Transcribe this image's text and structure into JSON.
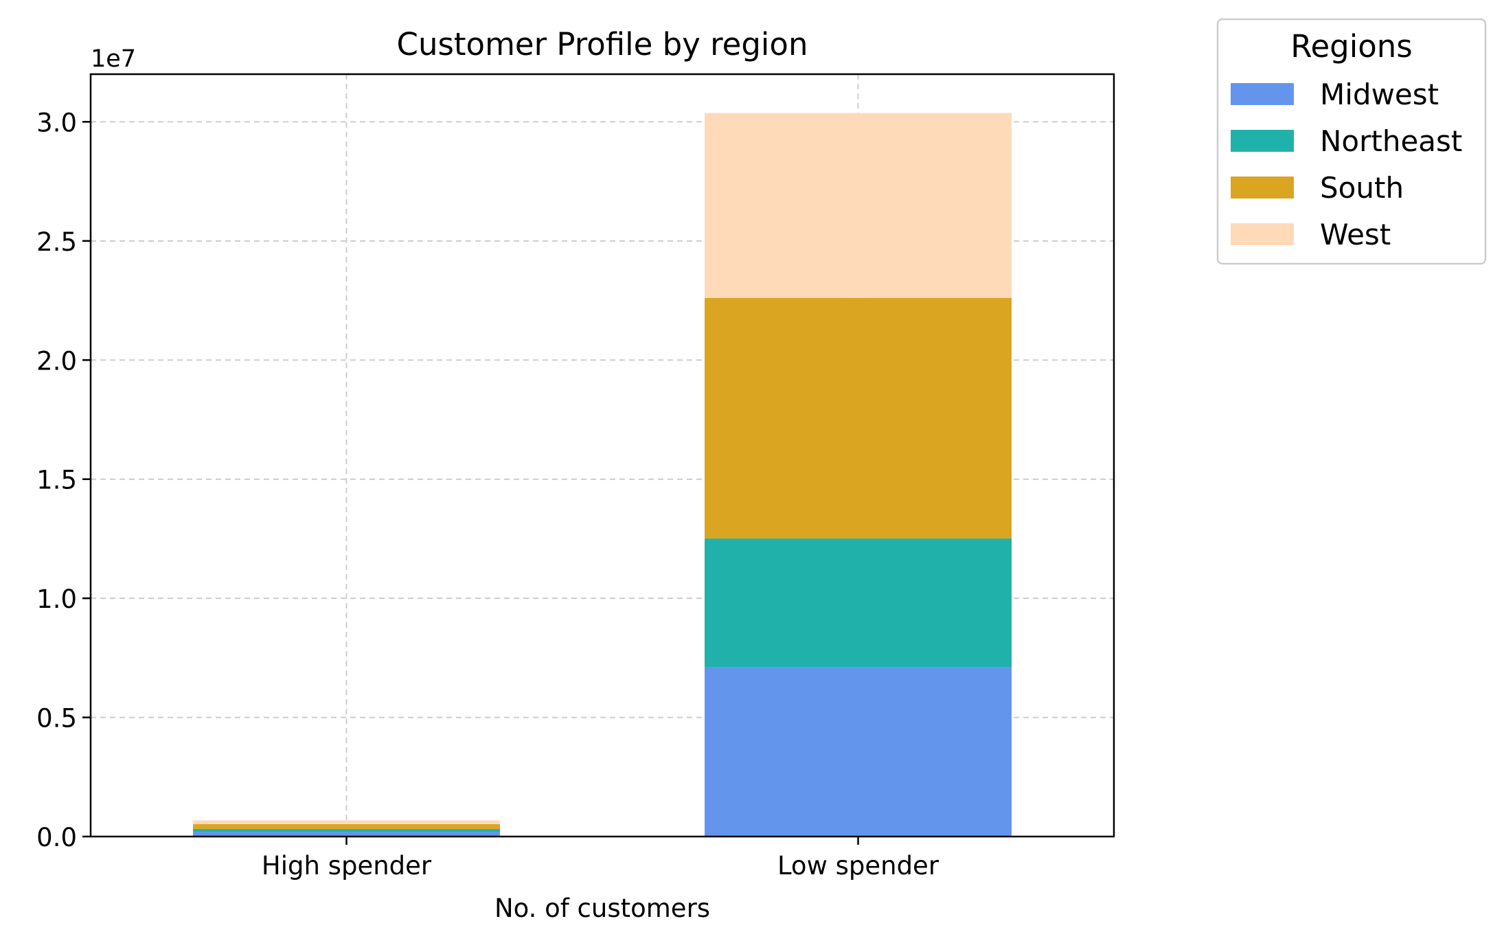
{
  "chart_data": {
    "type": "bar",
    "stacked": true,
    "title": "Customer Profile by region",
    "xlabel": "No. of customers",
    "ylabel": "",
    "y_offset_label": "1e7",
    "y_scale": 10000000,
    "ylim": [
      0,
      3.2
    ],
    "yticks": [
      0.0,
      0.5,
      1.0,
      1.5,
      2.0,
      2.5,
      3.0
    ],
    "ytick_labels": [
      "0.0",
      "0.5",
      "1.0",
      "1.5",
      "2.0",
      "2.5",
      "3.0"
    ],
    "grid": true,
    "categories": [
      "High spender",
      "Low spender"
    ],
    "series": [
      {
        "name": "Midwest",
        "color": "#6495ED",
        "values": [
          0.019,
          0.712
        ]
      },
      {
        "name": "Northeast",
        "color": "#20B2AA",
        "values": [
          0.013,
          0.539
        ]
      },
      {
        "name": "South",
        "color": "#DAA520",
        "values": [
          0.02,
          1.01
        ]
      },
      {
        "name": "West",
        "color": "#FFDAB9",
        "values": [
          0.016,
          0.776
        ]
      }
    ],
    "legend": {
      "title": "Regions",
      "placement": "outside upper-right"
    }
  }
}
